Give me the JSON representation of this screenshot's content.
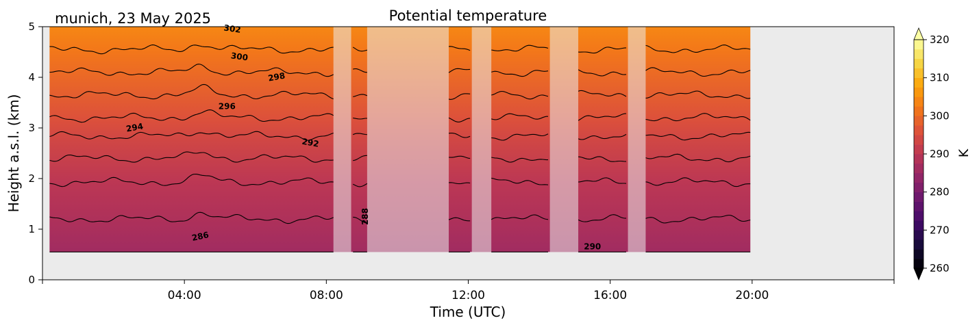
{
  "chart_data": {
    "type": "heatmap",
    "title": "Potential temperature",
    "subtitle": "munich, 23 May 2025",
    "xlabel": "Time (UTC)",
    "ylabel": "Height a.s.l. (km)",
    "xlim": [
      0,
      24
    ],
    "ylim": [
      0,
      5
    ],
    "x_ticks": [
      4,
      8,
      12,
      16,
      20
    ],
    "x_tick_labels": [
      "04:00",
      "08:00",
      "12:00",
      "16:00",
      "20:00"
    ],
    "y_ticks": [
      0,
      1,
      2,
      3,
      4,
      5
    ],
    "y_tick_labels": [
      "0",
      "1",
      "2",
      "3",
      "4",
      "5"
    ],
    "data_time_range": [
      0.2,
      19.95
    ],
    "data_height_range": [
      0.55,
      5.0
    ],
    "background_color": "#ebebeb",
    "colorbar": {
      "label": "K",
      "range": [
        260,
        320
      ],
      "ticks": [
        260,
        270,
        280,
        290,
        300,
        310,
        320
      ],
      "tick_labels": [
        "260",
        "270",
        "280",
        "290",
        "300",
        "310",
        "320"
      ],
      "extend": "both",
      "colormap": "inferno"
    },
    "contour_levels": [
      {
        "value": 286,
        "base_height": 0.55
      },
      {
        "value": 288,
        "base_height": 1.2
      },
      {
        "value": 290,
        "base_height": 1.93
      },
      {
        "value": 292,
        "base_height": 2.4
      },
      {
        "value": 294,
        "base_height": 2.84
      },
      {
        "value": 296,
        "base_height": 3.2
      },
      {
        "value": 298,
        "base_height": 3.65
      },
      {
        "value": 300,
        "base_height": 4.1
      },
      {
        "value": 302,
        "base_height": 4.55
      }
    ],
    "contour_labels": [
      {
        "text": "286",
        "x": 4.45,
        "y": 0.85,
        "angle": -12
      },
      {
        "text": "288",
        "x": 9.1,
        "y": 1.25,
        "angle": -90
      },
      {
        "text": "290",
        "x": 15.5,
        "y": 0.65,
        "angle": 0
      },
      {
        "text": "292",
        "x": 7.55,
        "y": 2.7,
        "angle": 10
      },
      {
        "text": "294",
        "x": 2.6,
        "y": 3.0,
        "angle": -10
      },
      {
        "text": "296",
        "x": 5.2,
        "y": 3.42,
        "angle": 0
      },
      {
        "text": "298",
        "x": 6.6,
        "y": 4.0,
        "angle": -10
      },
      {
        "text": "300",
        "x": 5.55,
        "y": 4.4,
        "angle": 8
      },
      {
        "text": "302",
        "x": 5.35,
        "y": 4.95,
        "angle": 8
      }
    ],
    "masked_intervals": [
      {
        "start": 8.2,
        "end": 8.7
      },
      {
        "start": 9.15,
        "end": 11.45
      },
      {
        "start": 12.1,
        "end": 12.65
      },
      {
        "start": 14.3,
        "end": 15.1
      },
      {
        "start": 16.5,
        "end": 17.0
      }
    ],
    "theta_profile": [
      {
        "height": 0.55,
        "theta": 286
      },
      {
        "height": 1.2,
        "theta": 288
      },
      {
        "height": 1.93,
        "theta": 290
      },
      {
        "height": 2.4,
        "theta": 292
      },
      {
        "height": 2.84,
        "theta": 294
      },
      {
        "height": 3.2,
        "theta": 296
      },
      {
        "height": 3.65,
        "theta": 298
      },
      {
        "height": 4.1,
        "theta": 300
      },
      {
        "height": 4.55,
        "theta": 302
      },
      {
        "height": 5.0,
        "theta": 304
      }
    ]
  }
}
